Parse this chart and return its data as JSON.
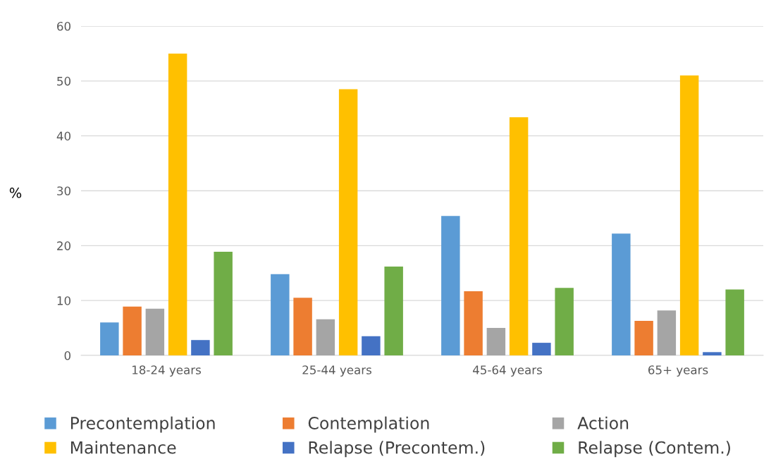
{
  "chart_data": {
    "type": "bar",
    "ylabel": "%",
    "categories": [
      "18-24 years",
      "25-44 years",
      "45-64 years",
      "65+ years"
    ],
    "series": [
      {
        "name": "Precontemplation",
        "color": "#5b9bd5",
        "values": [
          6.0,
          14.8,
          25.4,
          22.2
        ]
      },
      {
        "name": "Contemplation",
        "color": "#ed7d31",
        "values": [
          8.9,
          10.5,
          11.7,
          6.3
        ]
      },
      {
        "name": "Action",
        "color": "#a5a5a5",
        "values": [
          8.5,
          6.6,
          5.0,
          8.2
        ]
      },
      {
        "name": "Maintenance",
        "color": "#ffc000",
        "values": [
          55.0,
          48.5,
          43.4,
          51.0
        ]
      },
      {
        "name": "Relapse (Precontem.)",
        "color": "#4472c4",
        "values": [
          2.8,
          3.5,
          2.3,
          0.6
        ]
      },
      {
        "name": "Relapse (Contem.)",
        "color": "#70ad47",
        "values": [
          18.9,
          16.2,
          12.3,
          12.0
        ]
      }
    ],
    "ylim": [
      0,
      60
    ],
    "yticks": [
      0,
      10,
      20,
      30,
      40,
      50,
      60
    ],
    "grid": "y",
    "legend": "bottom"
  }
}
